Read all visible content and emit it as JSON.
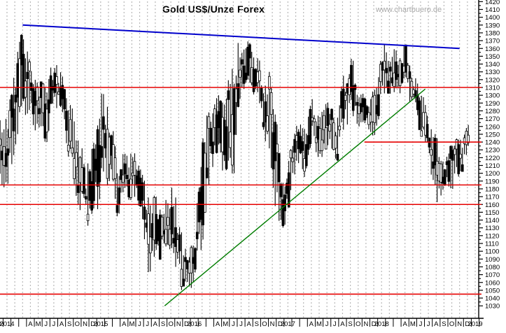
{
  "chart_data": {
    "type": "ohlc-bar",
    "title": "Gold US$/Unze Forex",
    "watermark": "www.chartbuero.de",
    "y_axis": {
      "unit": "US$/Unze",
      "min": 1030,
      "max": 1420,
      "tick_step": 10,
      "side": "right"
    },
    "x_axis": {
      "start": "2013-12",
      "end": "2019-01",
      "gridlines": "monthly-dashed",
      "labels": [
        {
          "pos": -1,
          "text": "D"
        },
        {
          "pos": 0,
          "text": "2014"
        },
        {
          "pos": 3,
          "text": "A"
        },
        {
          "pos": 4,
          "text": "M"
        },
        {
          "pos": 5,
          "text": "J"
        },
        {
          "pos": 6,
          "text": "J"
        },
        {
          "pos": 7,
          "text": "A"
        },
        {
          "pos": 8,
          "text": "S"
        },
        {
          "pos": 9,
          "text": "O"
        },
        {
          "pos": 10,
          "text": "N"
        },
        {
          "pos": 11,
          "text": "D"
        },
        {
          "pos": 12,
          "text": "2015"
        },
        {
          "pos": 15,
          "text": "A"
        },
        {
          "pos": 16,
          "text": "M"
        },
        {
          "pos": 17,
          "text": "J"
        },
        {
          "pos": 18,
          "text": "J"
        },
        {
          "pos": 19,
          "text": "A"
        },
        {
          "pos": 20,
          "text": "S"
        },
        {
          "pos": 21,
          "text": "O"
        },
        {
          "pos": 22,
          "text": "N"
        },
        {
          "pos": 23,
          "text": "D"
        },
        {
          "pos": 24,
          "text": "2016"
        },
        {
          "pos": 27,
          "text": "A"
        },
        {
          "pos": 28,
          "text": "M"
        },
        {
          "pos": 29,
          "text": "J"
        },
        {
          "pos": 30,
          "text": "J"
        },
        {
          "pos": 31,
          "text": "A"
        },
        {
          "pos": 32,
          "text": "S"
        },
        {
          "pos": 33,
          "text": "O"
        },
        {
          "pos": 34,
          "text": "N"
        },
        {
          "pos": 35,
          "text": "D"
        },
        {
          "pos": 36,
          "text": "2017"
        },
        {
          "pos": 39,
          "text": "A"
        },
        {
          "pos": 40,
          "text": "M"
        },
        {
          "pos": 41,
          "text": "J"
        },
        {
          "pos": 42,
          "text": "J"
        },
        {
          "pos": 43,
          "text": "A"
        },
        {
          "pos": 44,
          "text": "S"
        },
        {
          "pos": 45,
          "text": "O"
        },
        {
          "pos": 46,
          "text": "N"
        },
        {
          "pos": 47,
          "text": "D"
        },
        {
          "pos": 48,
          "text": "2018"
        },
        {
          "pos": 51,
          "text": "A"
        },
        {
          "pos": 52,
          "text": "M"
        },
        {
          "pos": 53,
          "text": "J"
        },
        {
          "pos": 54,
          "text": "J"
        },
        {
          "pos": 55,
          "text": "A"
        },
        {
          "pos": 56,
          "text": "S"
        },
        {
          "pos": 57,
          "text": "O"
        },
        {
          "pos": 58,
          "text": "N"
        },
        {
          "pos": 59,
          "text": "D"
        },
        {
          "pos": 60,
          "text": "2019"
        }
      ]
    },
    "monthly": [
      {
        "month": "2013-12",
        "high": 1268,
        "low": 1182
      },
      {
        "month": "2014-01",
        "high": 1278,
        "low": 1182
      },
      {
        "month": "2014-02",
        "high": 1345,
        "low": 1237
      },
      {
        "month": "2014-03",
        "high": 1392,
        "low": 1277
      },
      {
        "month": "2014-04",
        "high": 1331,
        "low": 1268
      },
      {
        "month": "2014-05",
        "high": 1315,
        "low": 1242
      },
      {
        "month": "2014-06",
        "high": 1325,
        "low": 1240
      },
      {
        "month": "2014-07",
        "high": 1346,
        "low": 1287
      },
      {
        "month": "2014-08",
        "high": 1324,
        "low": 1273
      },
      {
        "month": "2014-09",
        "high": 1292,
        "low": 1204
      },
      {
        "month": "2014-10",
        "high": 1256,
        "low": 1160
      },
      {
        "month": "2014-11",
        "high": 1208,
        "low": 1130
      },
      {
        "month": "2014-12",
        "high": 1239,
        "low": 1141
      },
      {
        "month": "2015-01",
        "high": 1307,
        "low": 1167
      },
      {
        "month": "2015-02",
        "high": 1285,
        "low": 1190
      },
      {
        "month": "2015-03",
        "high": 1223,
        "low": 1141
      },
      {
        "month": "2015-04",
        "high": 1225,
        "low": 1170
      },
      {
        "month": "2015-05",
        "high": 1232,
        "low": 1162
      },
      {
        "month": "2015-06",
        "high": 1206,
        "low": 1157
      },
      {
        "month": "2015-07",
        "high": 1175,
        "low": 1072
      },
      {
        "month": "2015-08",
        "high": 1170,
        "low": 1080
      },
      {
        "month": "2015-09",
        "high": 1157,
        "low": 1098
      },
      {
        "month": "2015-10",
        "high": 1192,
        "low": 1104
      },
      {
        "month": "2015-11",
        "high": 1146,
        "low": 1052
      },
      {
        "month": "2015-12",
        "high": 1089,
        "low": 1045
      },
      {
        "month": "2016-01",
        "high": 1128,
        "low": 1061
      },
      {
        "month": "2016-02",
        "high": 1263,
        "low": 1115
      },
      {
        "month": "2016-03",
        "high": 1285,
        "low": 1208
      },
      {
        "month": "2016-04",
        "high": 1300,
        "low": 1208
      },
      {
        "month": "2016-05",
        "high": 1306,
        "low": 1199
      },
      {
        "month": "2016-06",
        "high": 1359,
        "low": 1200
      },
      {
        "month": "2016-07",
        "high": 1375,
        "low": 1310
      },
      {
        "month": "2016-08",
        "high": 1367,
        "low": 1302
      },
      {
        "month": "2016-09",
        "high": 1352,
        "low": 1300
      },
      {
        "month": "2016-10",
        "high": 1322,
        "low": 1241
      },
      {
        "month": "2016-11",
        "high": 1338,
        "low": 1170
      },
      {
        "month": "2016-12",
        "high": 1188,
        "low": 1122
      },
      {
        "month": "2017-01",
        "high": 1220,
        "low": 1146
      },
      {
        "month": "2017-02",
        "high": 1264,
        "low": 1216
      },
      {
        "month": "2017-03",
        "high": 1261,
        "low": 1195
      },
      {
        "month": "2017-04",
        "high": 1295,
        "low": 1240
      },
      {
        "month": "2017-05",
        "high": 1273,
        "low": 1214
      },
      {
        "month": "2017-06",
        "high": 1296,
        "low": 1236
      },
      {
        "month": "2017-07",
        "high": 1270,
        "low": 1204
      },
      {
        "month": "2017-08",
        "high": 1325,
        "low": 1251
      },
      {
        "month": "2017-09",
        "high": 1357,
        "low": 1274
      },
      {
        "month": "2017-10",
        "high": 1306,
        "low": 1260
      },
      {
        "month": "2017-11",
        "high": 1298,
        "low": 1263
      },
      {
        "month": "2017-12",
        "high": 1307,
        "low": 1236
      },
      {
        "month": "2018-01",
        "high": 1366,
        "low": 1302
      },
      {
        "month": "2018-02",
        "high": 1361,
        "low": 1302
      },
      {
        "month": "2018-03",
        "high": 1357,
        "low": 1303
      },
      {
        "month": "2018-04",
        "high": 1365,
        "low": 1301
      },
      {
        "month": "2018-05",
        "high": 1326,
        "low": 1282
      },
      {
        "month": "2018-06",
        "high": 1309,
        "low": 1247
      },
      {
        "month": "2018-07",
        "high": 1266,
        "low": 1211
      },
      {
        "month": "2018-08",
        "high": 1245,
        "low": 1160
      },
      {
        "month": "2018-09",
        "high": 1214,
        "low": 1183
      },
      {
        "month": "2018-10",
        "high": 1243,
        "low": 1180
      },
      {
        "month": "2018-11",
        "high": 1246,
        "low": 1196
      },
      {
        "month": "2018-12",
        "high": 1262,
        "low": 1221
      }
    ],
    "horizontal_levels": [
      {
        "value": 1310,
        "from_month": -1,
        "to_month": 60.8
      },
      {
        "value": 1240,
        "from_month": 45.8,
        "to_month": 60.8
      },
      {
        "value": 1185,
        "from_month": -1,
        "to_month": 60.8
      },
      {
        "value": 1160,
        "from_month": -1,
        "to_month": 60.8
      },
      {
        "value": 1045,
        "from_month": -1,
        "to_month": 60.8
      }
    ],
    "trendlines": [
      {
        "name": "descending-resistance",
        "from": {
          "month": 2.0,
          "value": 1390
        },
        "to": {
          "month": 58.0,
          "value": 1360
        },
        "color": "#0000cc",
        "width": 2
      },
      {
        "name": "ascending-support",
        "from": {
          "month": 20.2,
          "value": 1030
        },
        "to": {
          "month": 53.6,
          "value": 1308
        },
        "color": "#007d00",
        "width": 1.4
      }
    ],
    "colors": {
      "bar": "#000000",
      "level": "#e60000",
      "grid": "#b8b8b8",
      "axis": "#000000",
      "watermark": "#a8a8a8"
    }
  }
}
